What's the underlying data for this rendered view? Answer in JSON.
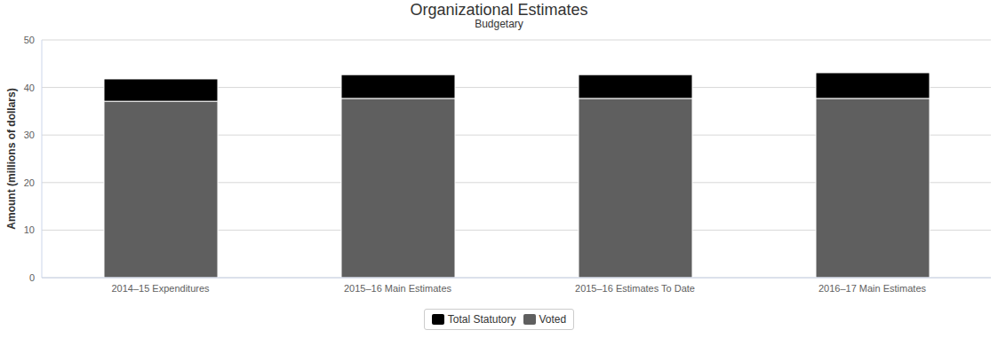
{
  "chart_data": {
    "type": "bar",
    "title": "Organizational Estimates",
    "subtitle": "Budgetary",
    "y_label": "Amount (millions of dollars)",
    "categories": [
      "2014–15 Expenditures",
      "2015–16 Main Estimates",
      "2015–16 Estimates To Date",
      "2016–17 Main Estimates"
    ],
    "series": [
      {
        "name": "Total Statutory",
        "color": "#000000",
        "values": [
          4.7,
          5.0,
          5.0,
          5.4
        ]
      },
      {
        "name": "Voted",
        "color": "#5f5f5f",
        "values": [
          37.1,
          37.7,
          37.7,
          37.7
        ]
      }
    ],
    "stacked": true,
    "ylim": [
      0,
      50
    ],
    "yticks": [
      0,
      10,
      20,
      30,
      40,
      50
    ],
    "grid": true,
    "legend": "bottom"
  }
}
